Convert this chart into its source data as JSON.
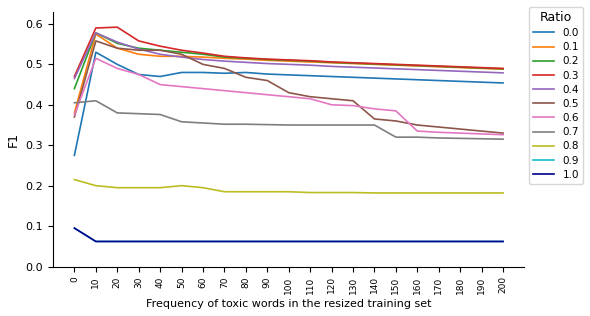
{
  "x": [
    0,
    10,
    20,
    30,
    40,
    50,
    60,
    70,
    80,
    90,
    100,
    110,
    120,
    130,
    140,
    150,
    160,
    170,
    180,
    190,
    200
  ],
  "series": {
    "0.0": [
      0.275,
      0.53,
      0.5,
      0.475,
      0.47,
      0.48,
      0.48,
      0.478,
      0.48,
      0.476,
      0.474,
      0.472,
      0.47,
      0.468,
      0.466,
      0.464,
      0.462,
      0.46,
      0.458,
      0.456,
      0.454
    ],
    "0.1": [
      0.38,
      0.575,
      0.54,
      0.525,
      0.52,
      0.52,
      0.518,
      0.515,
      0.513,
      0.51,
      0.508,
      0.506,
      0.504,
      0.502,
      0.5,
      0.498,
      0.496,
      0.494,
      0.492,
      0.49,
      0.488
    ],
    "0.2": [
      0.44,
      0.578,
      0.552,
      0.54,
      0.535,
      0.53,
      0.525,
      0.518,
      0.515,
      0.512,
      0.51,
      0.508,
      0.505,
      0.503,
      0.501,
      0.499,
      0.497,
      0.495,
      0.493,
      0.491,
      0.489
    ],
    "0.3": [
      0.47,
      0.59,
      0.592,
      0.558,
      0.545,
      0.535,
      0.528,
      0.52,
      0.516,
      0.513,
      0.511,
      0.509,
      0.506,
      0.504,
      0.502,
      0.5,
      0.498,
      0.496,
      0.494,
      0.492,
      0.49
    ],
    "0.4": [
      0.465,
      0.578,
      0.555,
      0.538,
      0.525,
      0.518,
      0.512,
      0.508,
      0.505,
      0.502,
      0.5,
      0.498,
      0.495,
      0.493,
      0.491,
      0.489,
      0.487,
      0.485,
      0.483,
      0.481,
      0.479
    ],
    "0.5": [
      0.37,
      0.558,
      0.54,
      0.535,
      0.535,
      0.525,
      0.5,
      0.49,
      0.468,
      0.46,
      0.43,
      0.42,
      0.415,
      0.41,
      0.365,
      0.36,
      0.35,
      0.345,
      0.34,
      0.335,
      0.33
    ],
    "0.6": [
      0.375,
      0.515,
      0.49,
      0.475,
      0.45,
      0.445,
      0.44,
      0.435,
      0.43,
      0.425,
      0.42,
      0.415,
      0.4,
      0.398,
      0.39,
      0.385,
      0.335,
      0.332,
      0.33,
      0.328,
      0.326
    ],
    "0.7": [
      0.405,
      0.41,
      0.38,
      0.378,
      0.376,
      0.358,
      0.355,
      0.352,
      0.352,
      0.351,
      0.35,
      0.35,
      0.35,
      0.35,
      0.35,
      0.32,
      0.32,
      0.318,
      0.317,
      0.316,
      0.315
    ],
    "0.8": [
      0.215,
      0.2,
      0.195,
      0.195,
      0.195,
      0.2,
      0.195,
      0.185,
      0.185,
      0.185,
      0.185,
      0.183,
      0.183,
      0.183,
      0.182,
      0.182,
      0.182,
      0.182,
      0.182,
      0.182,
      0.182
    ],
    "0.9": [
      0.095,
      0.062,
      0.062,
      0.062,
      0.062,
      0.062,
      0.062,
      0.062,
      0.062,
      0.062,
      0.062,
      0.062,
      0.062,
      0.062,
      0.062,
      0.062,
      0.062,
      0.062,
      0.062,
      0.062,
      0.062
    ],
    "1.0": [
      0.095,
      0.062,
      0.062,
      0.062,
      0.062,
      0.062,
      0.062,
      0.062,
      0.062,
      0.062,
      0.062,
      0.062,
      0.062,
      0.062,
      0.062,
      0.062,
      0.062,
      0.062,
      0.062,
      0.062,
      0.062
    ]
  },
  "line_colors": {
    "0.0": "#1f77b4",
    "0.1": "#ff7f0e",
    "0.2": "#2ca02c",
    "0.3": "#d62728",
    "0.4": "#9467bd",
    "0.5": "#8c564b",
    "0.6": "#e377c2",
    "0.7": "#7f7f7f",
    "0.8": "#bcbd22",
    "0.9": "#17becf",
    "1.0": "#00008b"
  },
  "ylabel": "F1",
  "xlabel": "Frequency of toxic words in the resized training set",
  "legend_title": "Ratio",
  "yticks": [
    0.0,
    0.1,
    0.2,
    0.3,
    0.4,
    0.5,
    0.6
  ],
  "xtick_labels": [
    "0",
    "10",
    "20",
    "30",
    "40",
    "50",
    "60",
    "70",
    "80",
    "90",
    "100",
    "110",
    "120",
    "130",
    "140",
    "150",
    "160",
    "170",
    "180",
    "190",
    "200"
  ]
}
